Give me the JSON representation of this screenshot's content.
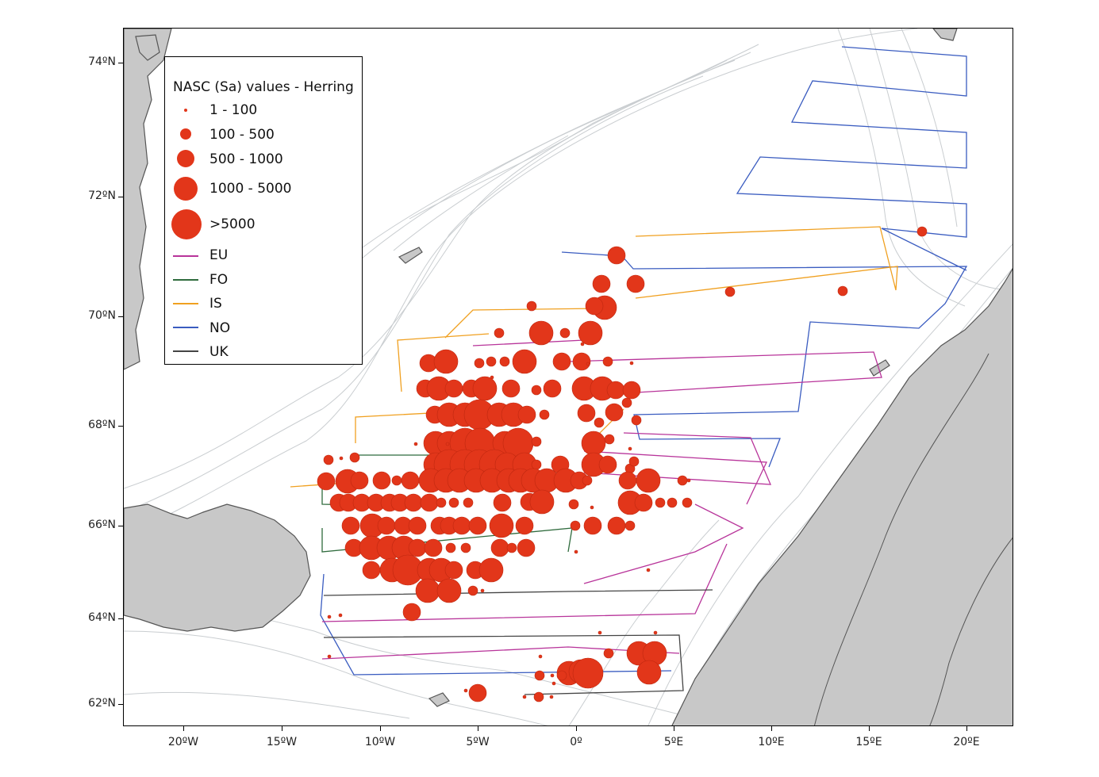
{
  "map": {
    "fill_land": "#c8c8c8",
    "land_edge": "#555555",
    "bathymetry_color": "#c9cdd0",
    "dot_color": "#e2361a",
    "lat_labels": [
      "74ºN",
      "72ºN",
      "70ºN",
      "68ºN",
      "66ºN",
      "64ºN",
      "62ºN"
    ],
    "lon_labels": [
      "20ºW",
      "15ºW",
      "10ºW",
      "5ºW",
      "0º",
      "5ºE",
      "10ºE",
      "15ºE",
      "20ºE"
    ]
  },
  "legend": {
    "title": "NASC (Sa) values - Herring",
    "classes": [
      {
        "label": "1 - 100"
      },
      {
        "label": "100 - 500"
      },
      {
        "label": "500 - 1000"
      },
      {
        "label": "1000 - 5000"
      },
      {
        "label": ">5000"
      }
    ],
    "vessels": [
      {
        "label": "EU",
        "color": "#b8349a"
      },
      {
        "label": "FO",
        "color": "#2f6b3d"
      },
      {
        "label": "IS",
        "color": "#f0a020"
      },
      {
        "label": "NO",
        "color": "#3a5cc0"
      },
      {
        "label": "UK",
        "color": "#444444"
      }
    ]
  }
}
